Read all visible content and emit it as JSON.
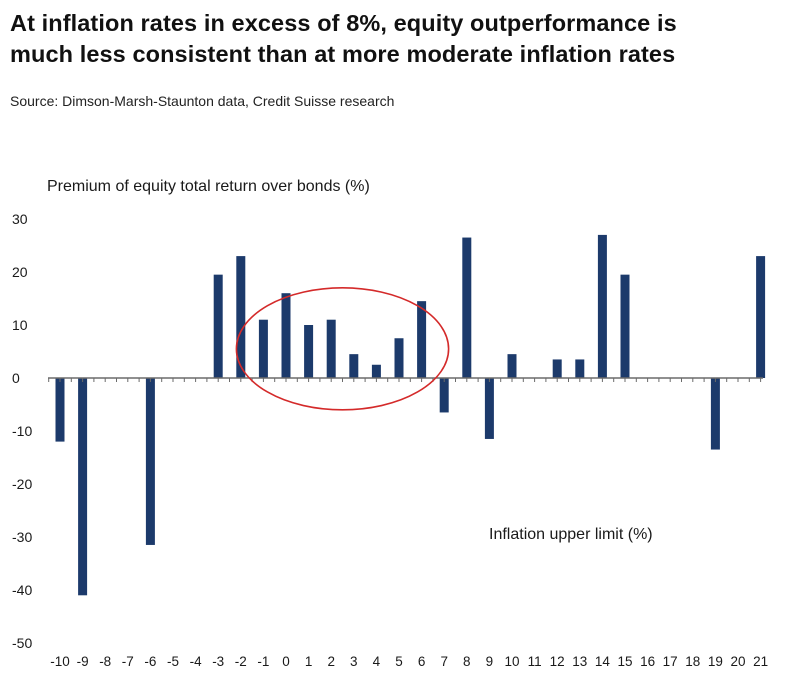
{
  "title_line1": "At inflation rates in excess of 8%, equity outperformance is",
  "title_line2": "much less consistent than at more moderate inflation rates",
  "source": "Source:  Dimson-Marsh-Staunton data, Credit Suisse research",
  "chart_data": {
    "type": "bar",
    "ylabel": "Premium of equity total return over bonds (%)",
    "xlabel": "Inflation upper limit (%)",
    "ylim": [
      -50,
      30
    ],
    "yticks": [
      30,
      20,
      10,
      0,
      -10,
      -20,
      -30,
      -40,
      -50
    ],
    "categories": [
      "-10",
      "-9",
      "-8",
      "-7",
      "-6",
      "-5",
      "-4",
      "-3",
      "-2",
      "-1",
      "0",
      "1",
      "2",
      "3",
      "4",
      "5",
      "6",
      "7",
      "8",
      "9",
      "10",
      "11",
      "12",
      "13",
      "14",
      "15",
      "16",
      "17",
      "18",
      "19",
      "20",
      "21"
    ],
    "values": [
      -12,
      -41,
      null,
      null,
      -31.5,
      null,
      null,
      19.5,
      23,
      11,
      16,
      10,
      11,
      4.5,
      2.5,
      7.5,
      14.5,
      -6.5,
      26.5,
      -11.5,
      4.5,
      null,
      3.5,
      3.5,
      27,
      19.5,
      null,
      null,
      null,
      -13.5,
      null,
      23
    ],
    "bar_color": "#1c3a6b",
    "annotation": {
      "type": "ellipse",
      "from_category": "-1",
      "to_category": "6",
      "color": "#d42a2a"
    }
  }
}
